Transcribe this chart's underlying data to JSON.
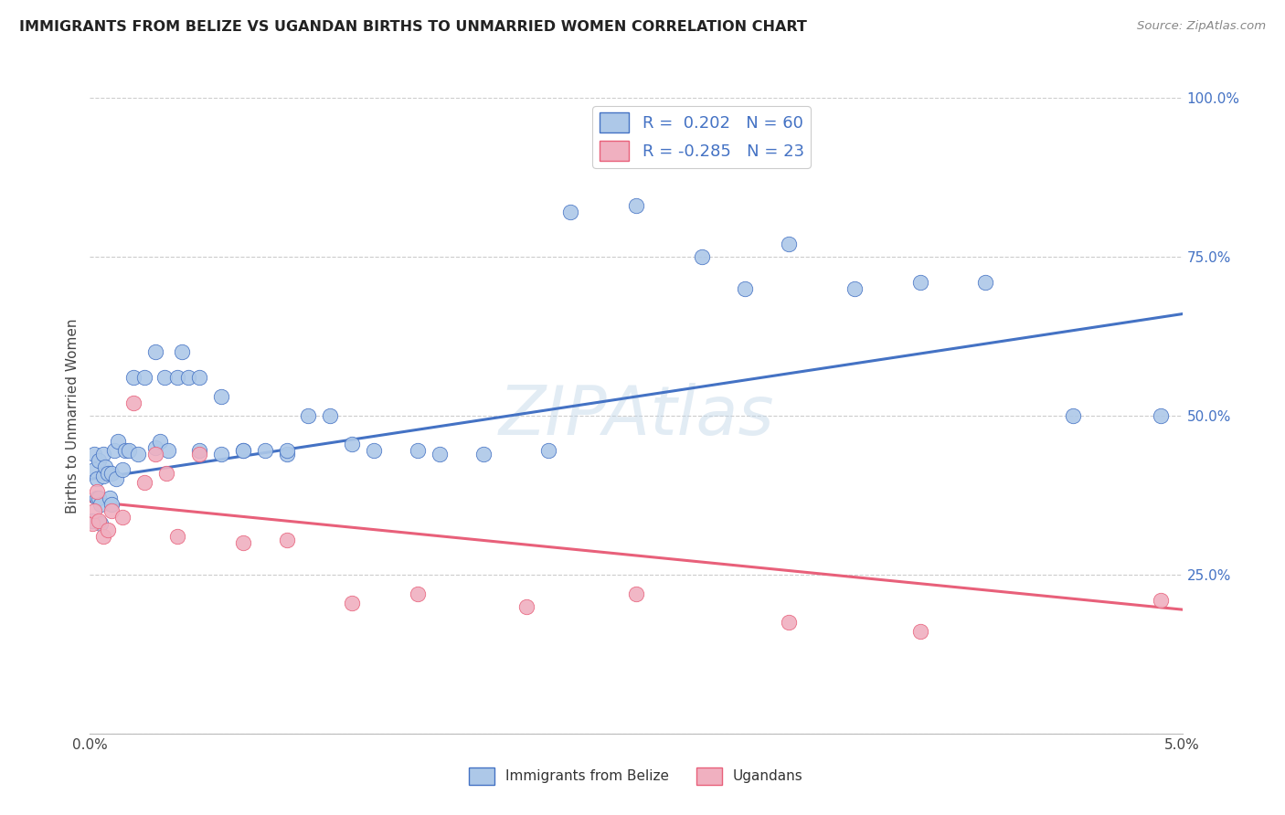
{
  "title": "IMMIGRANTS FROM BELIZE VS UGANDAN BIRTHS TO UNMARRIED WOMEN CORRELATION CHART",
  "source": "Source: ZipAtlas.com",
  "ylabel": "Births to Unmarried Women",
  "xlim": [
    0.0,
    0.05
  ],
  "ylim": [
    0.0,
    1.0
  ],
  "blue_R": "0.202",
  "blue_N": "60",
  "pink_R": "-0.285",
  "pink_N": "23",
  "blue_color": "#adc8e8",
  "pink_color": "#f0b0c0",
  "blue_line_color": "#4472c4",
  "pink_line_color": "#e8607a",
  "legend_label_blue": "Immigrants from Belize",
  "legend_label_pink": "Ugandans",
  "blue_line_x0": 0.0,
  "blue_line_y0": 0.4,
  "blue_line_x1": 0.05,
  "blue_line_y1": 0.66,
  "pink_line_x0": 0.0,
  "pink_line_y0": 0.365,
  "pink_line_x1": 0.05,
  "pink_line_y1": 0.195,
  "blue_x": [
    0.0001,
    0.0002,
    0.0002,
    0.0003,
    0.0003,
    0.0004,
    0.0004,
    0.0005,
    0.0005,
    0.0006,
    0.0006,
    0.0007,
    0.0008,
    0.0009,
    0.001,
    0.001,
    0.0011,
    0.0012,
    0.0013,
    0.0015,
    0.0016,
    0.0018,
    0.002,
    0.0022,
    0.0025,
    0.003,
    0.003,
    0.0032,
    0.0034,
    0.0036,
    0.004,
    0.0042,
    0.0045,
    0.005,
    0.005,
    0.006,
    0.006,
    0.007,
    0.007,
    0.008,
    0.009,
    0.009,
    0.01,
    0.011,
    0.012,
    0.013,
    0.015,
    0.016,
    0.018,
    0.021,
    0.022,
    0.025,
    0.028,
    0.03,
    0.032,
    0.035,
    0.038,
    0.041,
    0.045,
    0.049
  ],
  "blue_y": [
    0.335,
    0.415,
    0.44,
    0.37,
    0.4,
    0.43,
    0.37,
    0.36,
    0.33,
    0.405,
    0.44,
    0.42,
    0.41,
    0.37,
    0.36,
    0.41,
    0.445,
    0.4,
    0.46,
    0.415,
    0.445,
    0.445,
    0.56,
    0.44,
    0.56,
    0.45,
    0.6,
    0.46,
    0.56,
    0.445,
    0.56,
    0.6,
    0.56,
    0.445,
    0.56,
    0.53,
    0.44,
    0.445,
    0.445,
    0.445,
    0.44,
    0.445,
    0.5,
    0.5,
    0.455,
    0.445,
    0.445,
    0.44,
    0.44,
    0.445,
    0.82,
    0.83,
    0.75,
    0.7,
    0.77,
    0.7,
    0.71,
    0.71,
    0.5,
    0.5
  ],
  "pink_x": [
    0.0001,
    0.0002,
    0.0003,
    0.0004,
    0.0006,
    0.0008,
    0.001,
    0.0015,
    0.002,
    0.0025,
    0.003,
    0.0035,
    0.004,
    0.005,
    0.007,
    0.009,
    0.012,
    0.015,
    0.02,
    0.025,
    0.032,
    0.038,
    0.049
  ],
  "pink_y": [
    0.33,
    0.35,
    0.38,
    0.335,
    0.31,
    0.32,
    0.35,
    0.34,
    0.52,
    0.395,
    0.44,
    0.41,
    0.31,
    0.44,
    0.3,
    0.305,
    0.205,
    0.22,
    0.2,
    0.22,
    0.175,
    0.16,
    0.21
  ]
}
